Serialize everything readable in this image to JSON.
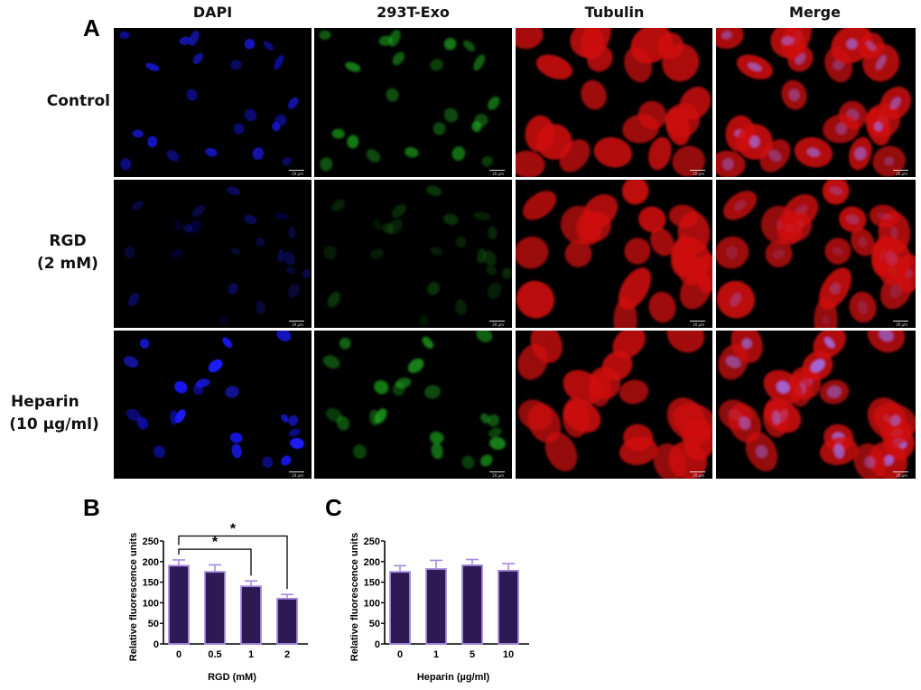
{
  "figure": {
    "panel_labels": {
      "a": "A",
      "b": "B",
      "c": "C"
    },
    "columns": [
      "DAPI",
      "293T-Exo",
      "Tubulin",
      "Merge"
    ],
    "rows": [
      {
        "label_lines": [
          "Control"
        ]
      },
      {
        "label_lines": [
          "RGD",
          "(2 mM)"
        ]
      },
      {
        "label_lines": [
          "Heparin",
          "(10 µg/ml)"
        ]
      }
    ],
    "scale_bar_label": "20 µm",
    "channel_colors": {
      "DAPI": "#1a1aff",
      "293T-Exo": "#22c022",
      "Tubulin": "#e01010",
      "Merge": "#e01010"
    },
    "signal_intensity": {
      "Control": {
        "DAPI": 0.75,
        "293T-Exo": 0.8,
        "Tubulin": 0.85
      },
      "RGD": {
        "DAPI": 0.35,
        "293T-Exo": 0.35,
        "Tubulin": 0.9
      },
      "Heparin": {
        "DAPI": 1.0,
        "293T-Exo": 0.85,
        "Tubulin": 0.8
      }
    }
  },
  "chart_data": [
    {
      "panel": "B",
      "type": "bar",
      "title": "",
      "categories": [
        "0",
        "0.5",
        "1",
        "2"
      ],
      "values": [
        190,
        175,
        140,
        110
      ],
      "error_upper": [
        204,
        192,
        153,
        120
      ],
      "xlabel": "RGD (mM)",
      "ylabel": "Relative fluorescence units",
      "ylim": [
        0,
        250
      ],
      "yticks": [
        0,
        50,
        100,
        150,
        200,
        250
      ],
      "grid": false,
      "legend": null,
      "bar_fill": "#2d1a54",
      "bar_edge": "#a68ae0",
      "annotations": [
        {
          "from": "0",
          "to": "1",
          "label": "*"
        },
        {
          "from": "0",
          "to": "2",
          "label": "*"
        }
      ]
    },
    {
      "panel": "C",
      "type": "bar",
      "title": "",
      "categories": [
        "0",
        "1",
        "5",
        "10"
      ],
      "values": [
        175,
        182,
        191,
        178
      ],
      "error_upper": [
        190,
        203,
        205,
        195
      ],
      "xlabel": "Heparin (µg/ml)",
      "ylabel": "Relative fluorescence units",
      "ylim": [
        0,
        250
      ],
      "yticks": [
        0,
        50,
        100,
        150,
        200,
        250
      ],
      "grid": false,
      "legend": null,
      "bar_fill": "#2d1a54",
      "bar_edge": "#a68ae0",
      "annotations": []
    }
  ]
}
